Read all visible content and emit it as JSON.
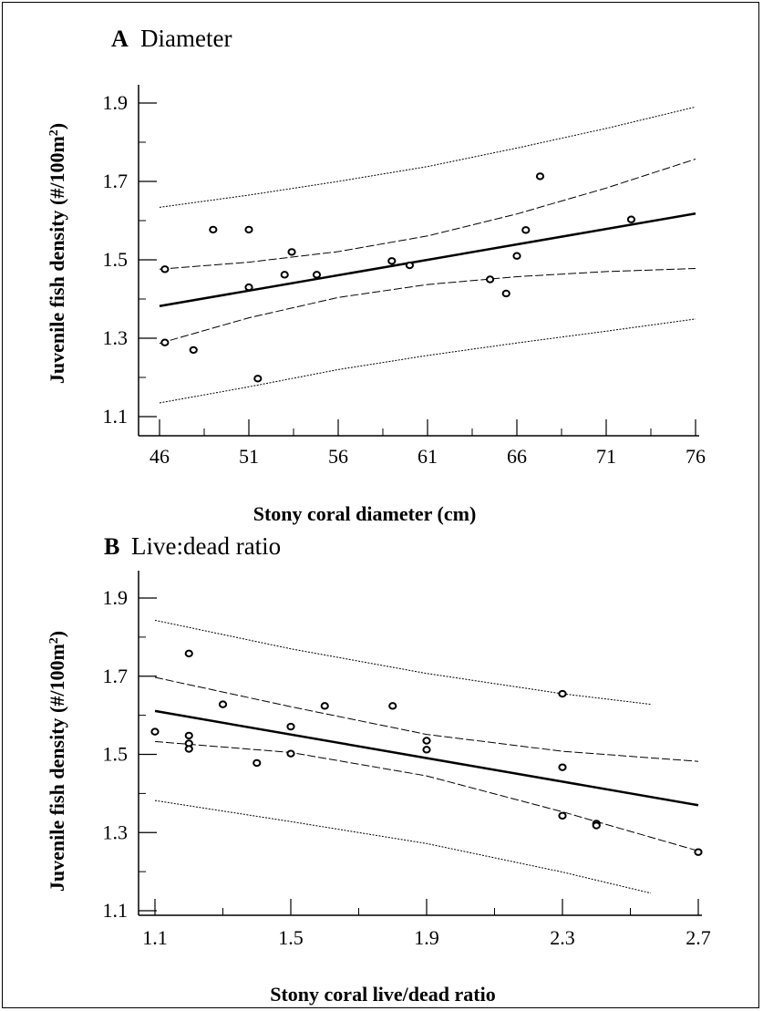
{
  "chart_data": [
    {
      "type": "scatter",
      "panel_letter": "A",
      "title": "Diameter",
      "xlabel": "Stony coral diameter (cm)",
      "ylabel_main": "Juvenile fish density (#/100m",
      "ylabel_sup": "2",
      "ylabel_end": ")",
      "xlim": [
        45,
        76
      ],
      "ylim": [
        1.1,
        1.9
      ],
      "xticks": [
        46,
        51,
        56,
        61,
        66,
        71,
        76
      ],
      "yticks": [
        1.1,
        1.3,
        1.5,
        1.7,
        1.9
      ],
      "ytick_labels": [
        "1.1",
        "1.3",
        "1.5",
        "1.7",
        "1.9"
      ],
      "points": [
        {
          "x": 46.3,
          "y": 1.476
        },
        {
          "x": 46.3,
          "y": 1.289
        },
        {
          "x": 47.9,
          "y": 1.27
        },
        {
          "x": 49.0,
          "y": 1.577
        },
        {
          "x": 51.0,
          "y": 1.577
        },
        {
          "x": 51.0,
          "y": 1.43
        },
        {
          "x": 51.5,
          "y": 1.197
        },
        {
          "x": 53.0,
          "y": 1.462
        },
        {
          "x": 53.4,
          "y": 1.52
        },
        {
          "x": 54.8,
          "y": 1.462
        },
        {
          "x": 59.0,
          "y": 1.497
        },
        {
          "x": 60.0,
          "y": 1.486
        },
        {
          "x": 64.5,
          "y": 1.45
        },
        {
          "x": 65.4,
          "y": 1.414
        },
        {
          "x": 66.0,
          "y": 1.51
        },
        {
          "x": 66.5,
          "y": 1.576
        },
        {
          "x": 67.3,
          "y": 1.713
        },
        {
          "x": 72.4,
          "y": 1.603
        }
      ],
      "regression": {
        "x": [
          46,
          76
        ],
        "y": [
          1.382,
          1.618
        ]
      },
      "confidence_band": {
        "x": [
          46,
          51,
          56,
          61,
          66,
          71,
          76
        ],
        "upper": [
          1.476,
          1.494,
          1.521,
          1.561,
          1.617,
          1.683,
          1.757
        ],
        "lower": [
          1.287,
          1.352,
          1.404,
          1.437,
          1.457,
          1.47,
          1.478
        ]
      },
      "prediction_band": {
        "x": [
          46,
          51,
          56,
          61,
          66,
          71,
          76
        ],
        "upper": [
          1.634,
          1.665,
          1.7,
          1.738,
          1.785,
          1.835,
          1.89
        ],
        "lower": [
          1.135,
          1.176,
          1.22,
          1.256,
          1.288,
          1.318,
          1.349
        ]
      }
    },
    {
      "type": "scatter",
      "panel_letter": "B",
      "title": "Live:dead ratio",
      "xlabel": "Stony coral live/dead ratio",
      "ylabel_main": "Juvenile fish density (#/100m",
      "ylabel_sup": "2",
      "ylabel_end": ")",
      "xlim": [
        1.05,
        2.75
      ],
      "ylim": [
        1.1,
        1.98
      ],
      "xticks": [
        1.1,
        1.5,
        1.9,
        2.3,
        2.7
      ],
      "xtick_labels": [
        "1.1",
        "1.5",
        "1.9",
        "2.3",
        "2.7"
      ],
      "yticks": [
        1.1,
        1.3,
        1.5,
        1.7,
        1.9
      ],
      "ytick_labels": [
        "1.1",
        "1.3",
        "1.5",
        "1.7",
        "1.9"
      ],
      "points": [
        {
          "x": 1.1,
          "y": 1.558
        },
        {
          "x": 1.2,
          "y": 1.758
        },
        {
          "x": 1.2,
          "y": 1.548
        },
        {
          "x": 1.2,
          "y": 1.528
        },
        {
          "x": 1.2,
          "y": 1.514
        },
        {
          "x": 1.3,
          "y": 1.628
        },
        {
          "x": 1.4,
          "y": 1.478
        },
        {
          "x": 1.5,
          "y": 1.571
        },
        {
          "x": 1.5,
          "y": 1.502
        },
        {
          "x": 1.6,
          "y": 1.624
        },
        {
          "x": 1.8,
          "y": 1.624
        },
        {
          "x": 1.9,
          "y": 1.535
        },
        {
          "x": 1.9,
          "y": 1.512
        },
        {
          "x": 2.3,
          "y": 1.655
        },
        {
          "x": 2.3,
          "y": 1.467
        },
        {
          "x": 2.3,
          "y": 1.343
        },
        {
          "x": 2.4,
          "y": 1.323
        },
        {
          "x": 2.4,
          "y": 1.318
        },
        {
          "x": 2.7,
          "y": 1.25
        }
      ],
      "regression": {
        "x": [
          1.1,
          2.7
        ],
        "y": [
          1.611,
          1.37
        ]
      },
      "confidence_band": {
        "x": [
          1.1,
          1.5,
          1.9,
          2.3,
          2.7
        ],
        "upper": [
          1.697,
          1.622,
          1.551,
          1.508,
          1.482
        ],
        "lower": [
          1.533,
          1.505,
          1.445,
          1.353,
          1.253
        ]
      },
      "prediction_band": {
        "x": [
          1.1,
          1.5,
          1.9,
          2.3,
          2.56
        ],
        "upper": [
          1.843,
          1.77,
          1.707,
          1.655,
          1.628
        ],
        "lower": [
          1.382,
          1.328,
          1.272,
          1.199,
          1.145
        ]
      }
    }
  ]
}
